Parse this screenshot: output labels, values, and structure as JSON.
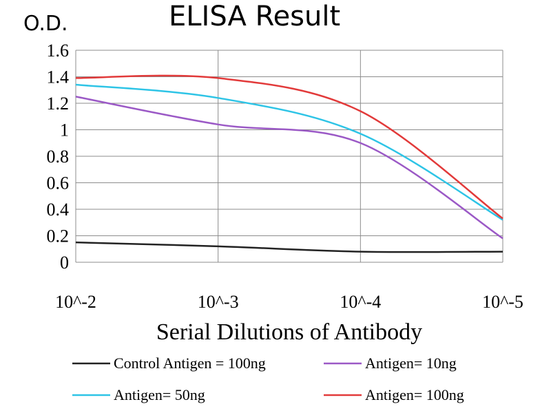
{
  "chart_data": {
    "type": "line",
    "title": "ELISA Result",
    "ylabel": "O.D.",
    "xlabel": "Serial Dilutions of Antibody",
    "x": [
      "10^-2",
      "10^-3",
      "10^-4",
      "10^-5"
    ],
    "x_values": [
      0.01,
      0.001,
      0.0001,
      1e-05
    ],
    "x_scale": "log",
    "ylim": [
      0,
      1.6
    ],
    "yticks": [
      "0",
      "0.2",
      "0.4",
      "0.6",
      "0.8",
      "1",
      "1.2",
      "1.4",
      "1.6"
    ],
    "grid": "on",
    "legend_placement": "bottom",
    "series": [
      {
        "name": "Control Antigen = 100ng",
        "color": "#222222",
        "values": [
          0.15,
          0.12,
          0.08,
          0.08
        ]
      },
      {
        "name": "Antigen= 10ng",
        "color": "#9b59c6",
        "values": [
          1.25,
          1.04,
          0.9,
          0.18
        ]
      },
      {
        "name": "Antigen= 50ng",
        "color": "#2ec4e6",
        "values": [
          1.34,
          1.24,
          0.97,
          0.32
        ]
      },
      {
        "name": "Antigen= 100ng",
        "color": "#e23a3a",
        "values": [
          1.39,
          1.39,
          1.14,
          0.33
        ]
      }
    ]
  }
}
